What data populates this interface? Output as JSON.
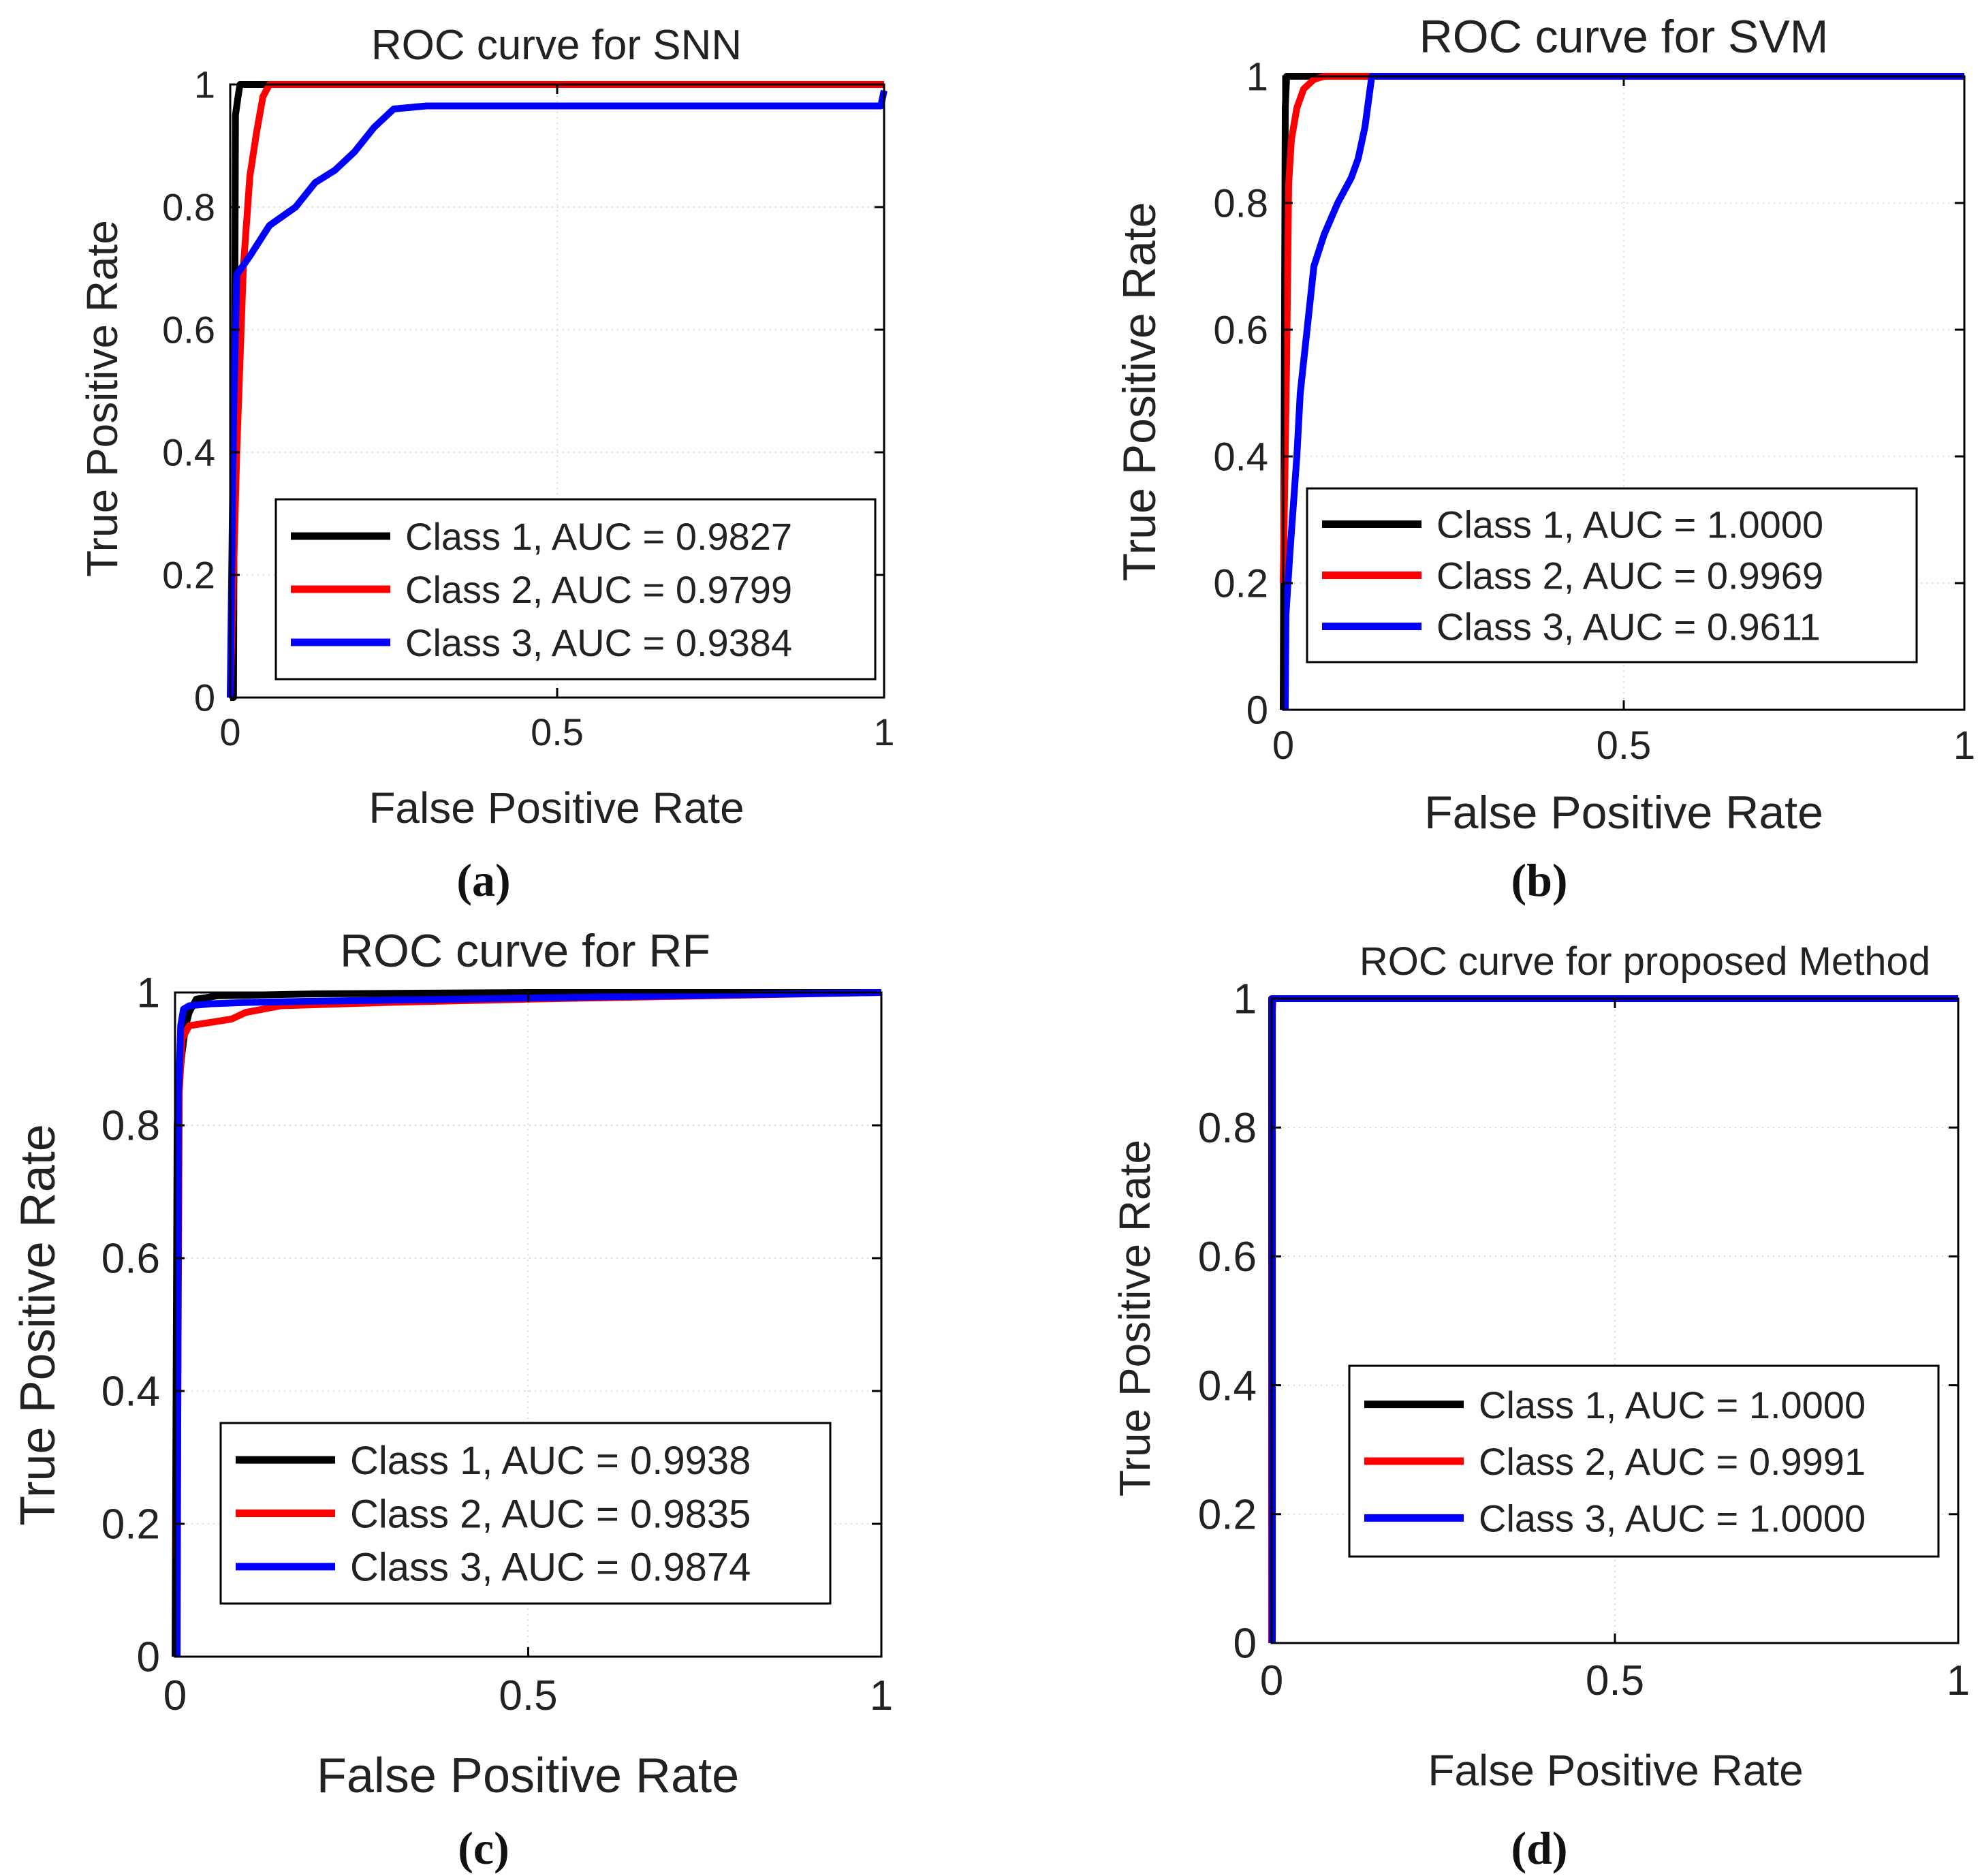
{
  "figure": {
    "colors": {
      "class1": "#000000",
      "class2": "#ff0000",
      "class3": "#0000ff",
      "axis": "#000000",
      "grid": "#d0d0d0"
    }
  },
  "chart_data": [
    {
      "type": "line",
      "id": "snn",
      "title": "ROC curve for SNN",
      "xlabel": "False Positive Rate",
      "ylabel": "True Positive Rate",
      "xlim": [
        0,
        1
      ],
      "ylim": [
        0,
        1
      ],
      "xticks": [
        "0",
        "0.5",
        "1"
      ],
      "yticks": [
        "0",
        "0.2",
        "0.4",
        "0.6",
        "0.8",
        "1"
      ],
      "grid": "on (faint dotted)",
      "legend_position": "bottom-right",
      "caption": "(a)",
      "series": [
        {
          "name": "Class 1, AUC = 0.9827",
          "color": "#000000",
          "x": [
            0,
            0.005,
            0.008,
            0.012,
            0.015,
            1
          ],
          "y": [
            0,
            0,
            0.95,
            0.98,
            1,
            1
          ]
        },
        {
          "name": "Class 2, AUC = 0.9799",
          "color": "#ff0000",
          "x": [
            0,
            0.01,
            0.02,
            0.03,
            0.04,
            0.05,
            0.06,
            1
          ],
          "y": [
            0,
            0.4,
            0.7,
            0.85,
            0.92,
            0.98,
            1,
            1
          ]
        },
        {
          "name": "Class 3, AUC = 0.9384",
          "color": "#0000ff",
          "x": [
            0,
            0.005,
            0.01,
            0.03,
            0.06,
            0.1,
            0.13,
            0.16,
            0.19,
            0.22,
            0.25,
            0.3,
            0.5,
            0.75,
            0.995,
            1
          ],
          "y": [
            0,
            0.45,
            0.69,
            0.72,
            0.77,
            0.8,
            0.84,
            0.86,
            0.89,
            0.93,
            0.96,
            0.965,
            0.965,
            0.965,
            0.965,
            0.99
          ]
        }
      ]
    },
    {
      "type": "line",
      "id": "svm",
      "title": "ROC curve for SVM",
      "xlabel": "False Positive Rate",
      "ylabel": "True Positive Rate",
      "xlim": [
        0,
        1
      ],
      "ylim": [
        0,
        1
      ],
      "xticks": [
        "0",
        "0.5",
        "1"
      ],
      "yticks": [
        "0",
        "0.2",
        "0.4",
        "0.6",
        "0.8",
        "1"
      ],
      "grid": "on (faint dotted)",
      "legend_position": "bottom-right",
      "caption": "(b)",
      "series": [
        {
          "name": "Class 1, AUC = 1.0000",
          "color": "#000000",
          "x": [
            0,
            0.003,
            0.005,
            1
          ],
          "y": [
            0,
            0.95,
            1,
            1
          ]
        },
        {
          "name": "Class 2, AUC = 0.9969",
          "color": "#ff0000",
          "x": [
            0,
            0.005,
            0.008,
            0.012,
            0.02,
            0.03,
            0.045,
            0.06,
            1
          ],
          "y": [
            0.2,
            0.55,
            0.83,
            0.9,
            0.95,
            0.98,
            0.995,
            1,
            1
          ]
        },
        {
          "name": "Class 3, AUC = 0.9611",
          "color": "#0000ff",
          "x": [
            0.003,
            0.004,
            0.01,
            0.02,
            0.025,
            0.03,
            0.035,
            0.045,
            0.06,
            0.08,
            0.1,
            0.11,
            0.12,
            0.13,
            1
          ],
          "y": [
            0,
            0.15,
            0.25,
            0.4,
            0.5,
            0.55,
            0.6,
            0.7,
            0.75,
            0.8,
            0.84,
            0.87,
            0.92,
            1,
            1
          ]
        }
      ]
    },
    {
      "type": "line",
      "id": "rf",
      "title": "ROC curve for RF",
      "xlabel": "False Positive Rate",
      "ylabel": "True Positive Rate",
      "xlim": [
        0,
        1
      ],
      "ylim": [
        0,
        1
      ],
      "xticks": [
        "0",
        "0.5",
        "1"
      ],
      "yticks": [
        "0",
        "0.2",
        "0.4",
        "0.6",
        "0.8",
        "1"
      ],
      "grid": "on (faint dotted)",
      "legend_position": "bottom-right",
      "caption": "(c)",
      "series": [
        {
          "name": "Class 1, AUC = 0.9938",
          "color": "#000000",
          "x": [
            0,
            0.003,
            0.006,
            0.01,
            0.015,
            0.02,
            0.03,
            0.06,
            0.2,
            0.5,
            1
          ],
          "y": [
            0,
            0.8,
            0.87,
            0.91,
            0.95,
            0.97,
            0.99,
            0.995,
            0.998,
            1,
            1
          ]
        },
        {
          "name": "Class 2, AUC = 0.9835",
          "color": "#ff0000",
          "x": [
            0.003,
            0.006,
            0.01,
            0.02,
            0.05,
            0.08,
            0.1,
            0.15,
            0.3,
            0.5,
            1
          ],
          "y": [
            0.15,
            0.85,
            0.93,
            0.95,
            0.955,
            0.96,
            0.97,
            0.98,
            0.985,
            0.99,
            1
          ]
        },
        {
          "name": "Class 3, AUC = 0.9874",
          "color": "#0000ff",
          "x": [
            0.003,
            0.005,
            0.008,
            0.012,
            0.02,
            0.05,
            0.1,
            0.2,
            0.4,
            0.7,
            1
          ],
          "y": [
            0,
            0.85,
            0.95,
            0.975,
            0.98,
            0.983,
            0.985,
            0.987,
            0.99,
            0.995,
            1
          ]
        }
      ]
    },
    {
      "type": "line",
      "id": "proposed",
      "title": "ROC curve for proposed Method",
      "xlabel": "False Positive Rate",
      "ylabel": "True Positive Rate",
      "xlim": [
        0,
        1
      ],
      "ylim": [
        0,
        1
      ],
      "xticks": [
        "0",
        "0.5",
        "1"
      ],
      "yticks": [
        "0",
        "0.2",
        "0.4",
        "0.6",
        "0.8",
        "1"
      ],
      "grid": "on (faint dotted)",
      "legend_position": "bottom-right",
      "caption": "(d)",
      "series": [
        {
          "name": "Class 1, AUC = 1.0000",
          "color": "#000000",
          "x": [
            0,
            0,
            1
          ],
          "y": [
            0,
            1,
            1
          ]
        },
        {
          "name": "Class 2, AUC = 0.9991",
          "color": "#ff0000",
          "x": [
            0,
            0.001,
            0.002,
            1
          ],
          "y": [
            0,
            0.98,
            1,
            1
          ]
        },
        {
          "name": "Class 3, AUC = 1.0000",
          "color": "#0000ff",
          "x": [
            0.001,
            0.001,
            1
          ],
          "y": [
            0,
            1,
            1
          ]
        }
      ]
    }
  ]
}
